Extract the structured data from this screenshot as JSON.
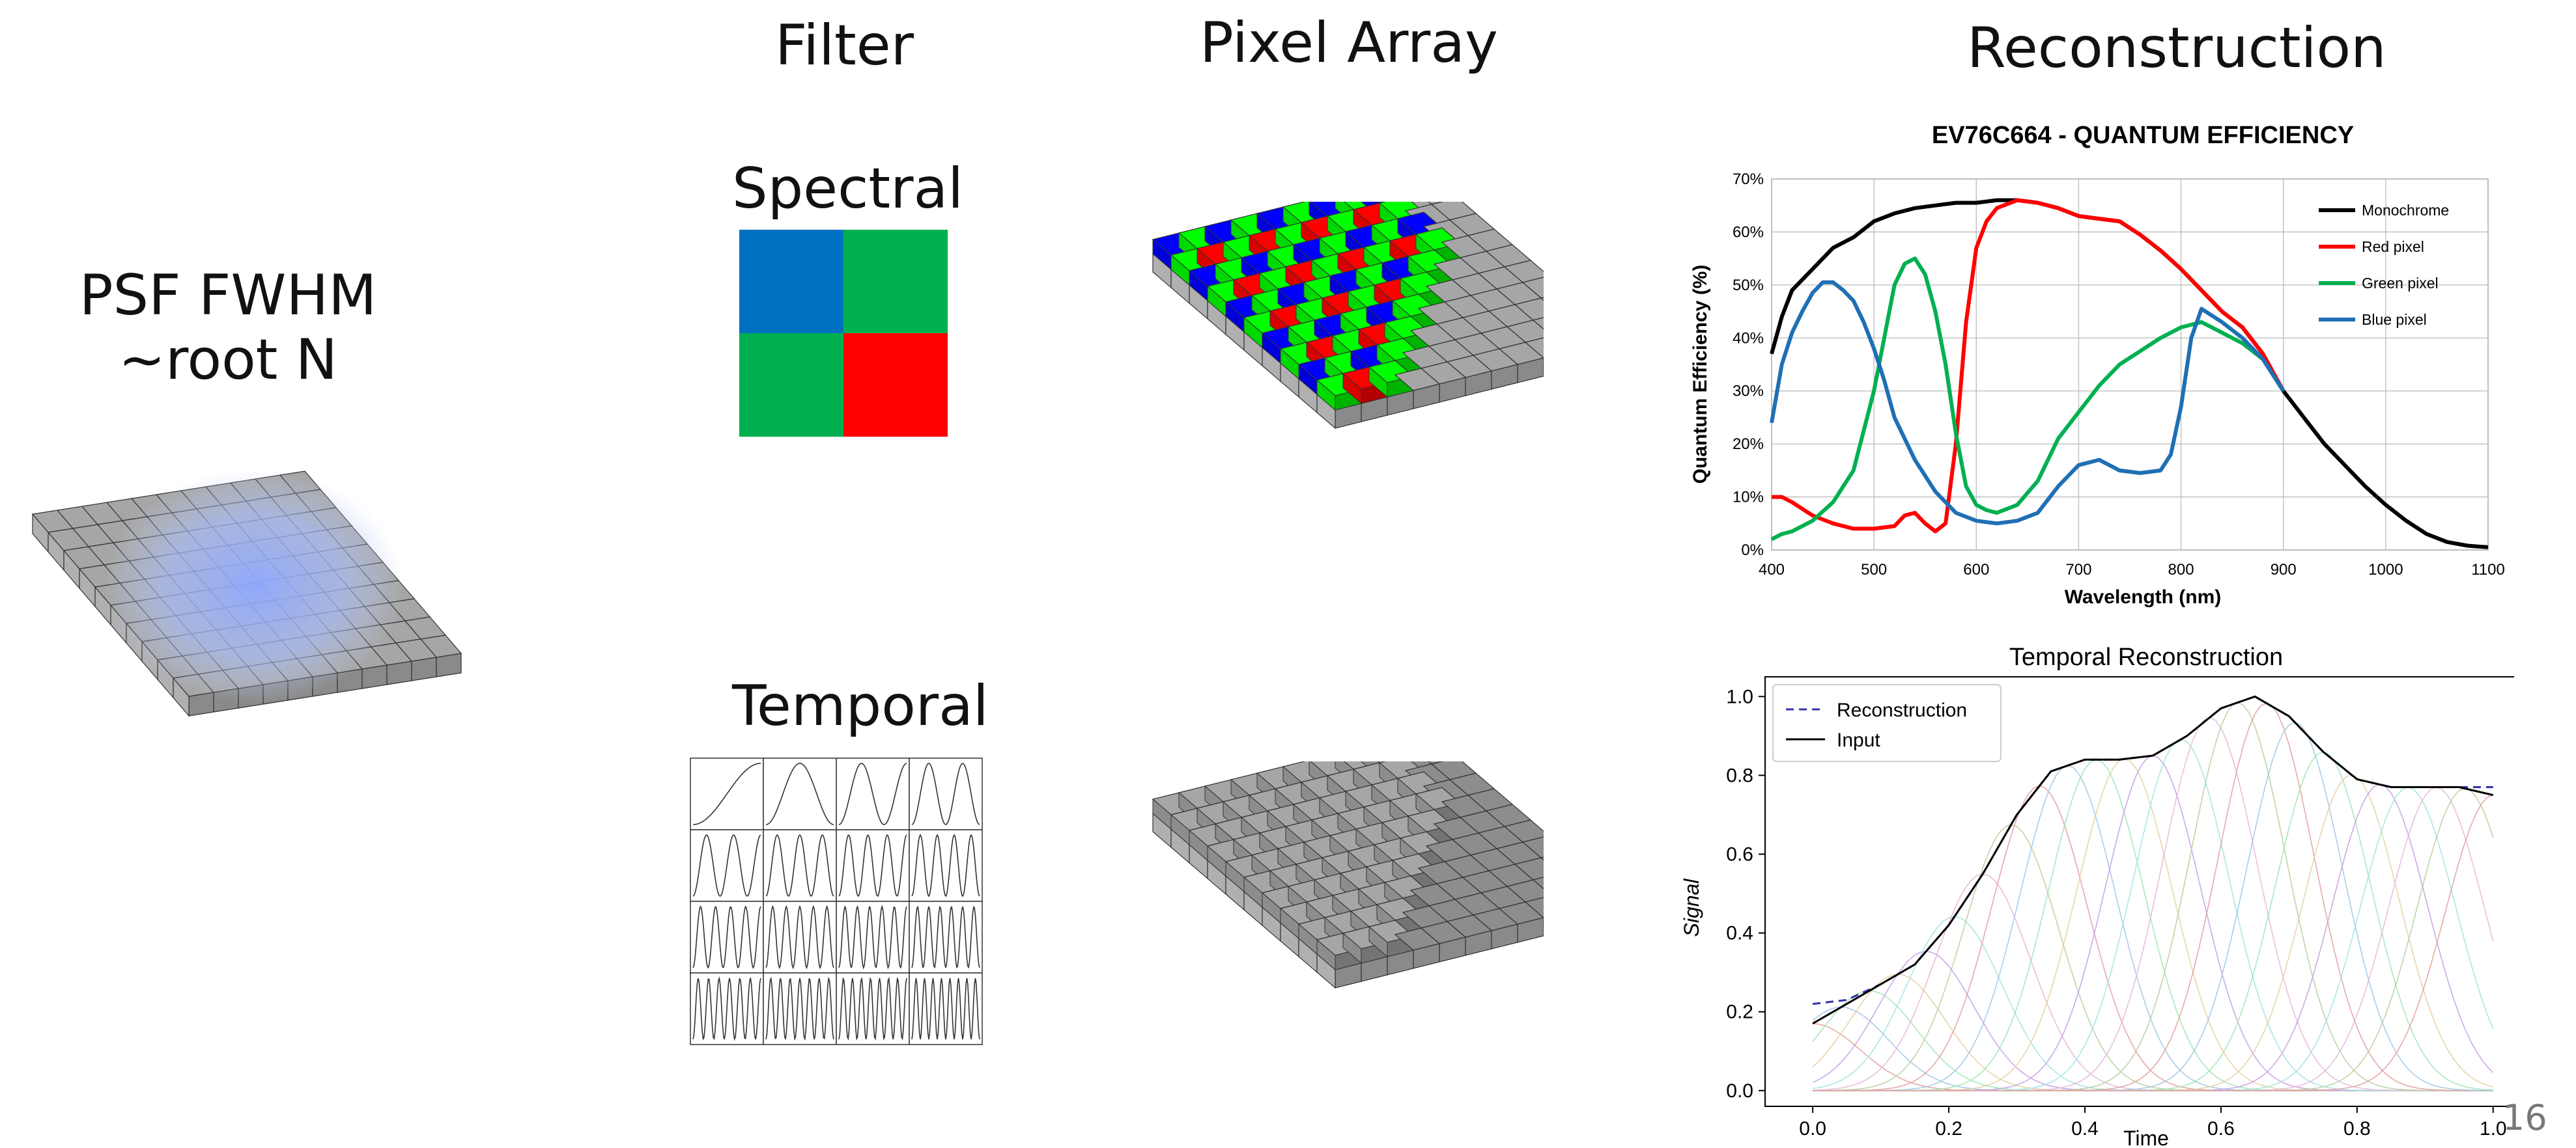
{
  "headings": {
    "filter": "Filter",
    "pixel_array": "Pixel Array",
    "reconstruction": "Reconstruction"
  },
  "psf": {
    "line1": "PSF FWHM",
    "line2": "~root N"
  },
  "spectral_label": "Spectral",
  "temporal_label": "Temporal",
  "page_number": "16",
  "colors": {
    "blue_filter": "#0070C0",
    "green_filter": "#00B050",
    "red_filter": "#FF0000",
    "bayer_blue": "#0000FF",
    "bayer_green": "#00FF00",
    "bayer_red": "#FF0000",
    "pixel_grey": "#9e9e9e",
    "psf_glow": "#8fa8ff"
  },
  "chart_data": [
    {
      "type": "line",
      "title": "EV76C664 - QUANTUM EFFICIENCY",
      "xlabel": "Wavelength (nm)",
      "ylabel": "Quantum Efficiency (%)",
      "xlim": [
        400,
        1100
      ],
      "ylim": [
        0,
        70
      ],
      "xticks": [
        "400",
        "500",
        "600",
        "700",
        "800",
        "900",
        "1000",
        "1100"
      ],
      "yticks": [
        "0%",
        "10%",
        "20%",
        "30%",
        "40%",
        "50%",
        "60%",
        "70%"
      ],
      "grid": true,
      "legend": "top-right",
      "series": [
        {
          "name": "Monochrome",
          "color": "#000000",
          "x": [
            400,
            410,
            420,
            440,
            460,
            480,
            500,
            520,
            540,
            560,
            580,
            600,
            620,
            640,
            660,
            680,
            700,
            720,
            740,
            760,
            780,
            800,
            820,
            840,
            860,
            880,
            900,
            920,
            940,
            960,
            980,
            1000,
            1020,
            1040,
            1060,
            1080,
            1100
          ],
          "y": [
            37,
            44,
            49,
            53,
            57,
            59,
            62,
            63.5,
            64.5,
            65,
            65.5,
            65.5,
            66,
            66,
            65.5,
            64.5,
            63,
            62.5,
            62,
            59.5,
            56.5,
            53,
            49,
            45,
            42,
            37,
            30,
            25,
            20,
            16,
            12,
            8.5,
            5.5,
            3,
            1.5,
            0.8,
            0.5
          ]
        },
        {
          "name": "Red pixel",
          "color": "#ff0000",
          "x": [
            400,
            410,
            420,
            440,
            460,
            480,
            500,
            520,
            530,
            540,
            550,
            560,
            570,
            580,
            590,
            600,
            610,
            620,
            640,
            660,
            680,
            700,
            720,
            740,
            760,
            780,
            800,
            820,
            840,
            860,
            880,
            900
          ],
          "y": [
            10,
            10,
            9,
            6.5,
            5,
            4,
            4,
            4.5,
            6.5,
            7,
            5,
            3.5,
            5,
            20,
            43,
            57,
            62,
            64.5,
            66,
            65.5,
            64.5,
            63,
            62.5,
            62,
            59.5,
            56.5,
            53,
            49,
            45,
            42,
            37,
            30
          ]
        },
        {
          "name": "Green pixel",
          "color": "#00b050",
          "x": [
            400,
            410,
            420,
            440,
            460,
            480,
            500,
            510,
            520,
            530,
            540,
            550,
            560,
            570,
            580,
            590,
            600,
            610,
            620,
            640,
            660,
            680,
            700,
            720,
            740,
            760,
            780,
            800,
            820,
            840,
            860,
            880,
            900
          ],
          "y": [
            2,
            3,
            3.5,
            5.5,
            9,
            15,
            30,
            40,
            50,
            54,
            55,
            52,
            45,
            35,
            22,
            12,
            8.5,
            7.5,
            7,
            8.5,
            13,
            21,
            26,
            31,
            35,
            37.5,
            40,
            42,
            43,
            41,
            39,
            36,
            30
          ]
        },
        {
          "name": "Blue pixel",
          "color": "#1f6fb5",
          "x": [
            400,
            410,
            420,
            430,
            440,
            450,
            460,
            470,
            480,
            490,
            500,
            510,
            520,
            540,
            560,
            580,
            600,
            620,
            640,
            660,
            680,
            700,
            720,
            740,
            760,
            780,
            790,
            800,
            810,
            820,
            840,
            860,
            880,
            900
          ],
          "y": [
            24,
            35,
            41,
            45,
            48.5,
            50.5,
            50.5,
            49,
            47,
            43,
            38,
            32,
            25,
            17,
            11,
            7,
            5.5,
            5,
            5.5,
            7,
            12,
            16,
            17,
            15,
            14.5,
            15,
            18,
            27,
            40,
            45.5,
            43,
            40,
            36,
            30
          ]
        }
      ]
    },
    {
      "type": "line",
      "title": "Temporal Reconstruction",
      "xlabel": "Time",
      "ylabel": "Signal",
      "xlim": [
        0,
        1
      ],
      "ylim": [
        0,
        1
      ],
      "xticks": [
        "0.0",
        "0.2",
        "0.4",
        "0.6",
        "0.8",
        "1.0"
      ],
      "yticks": [
        "0.0",
        "0.2",
        "0.4",
        "0.6",
        "0.8",
        "1.0"
      ],
      "legend": "top-left",
      "series": [
        {
          "name": "Reconstruction",
          "style": "dashed",
          "color": "#3333aa",
          "x": [
            0,
            0.05,
            0.1,
            0.15,
            0.2,
            0.25,
            0.3,
            0.35,
            0.4,
            0.45,
            0.5,
            0.55,
            0.6,
            0.65,
            0.7,
            0.75,
            0.8,
            0.85,
            0.9,
            0.95,
            1.0
          ],
          "y": [
            0.22,
            0.23,
            0.27,
            0.32,
            0.42,
            0.55,
            0.7,
            0.81,
            0.84,
            0.84,
            0.85,
            0.9,
            0.97,
            1.0,
            0.95,
            0.86,
            0.79,
            0.77,
            0.77,
            0.77,
            0.77
          ]
        },
        {
          "name": "Input",
          "style": "solid",
          "color": "#000000",
          "x": [
            0,
            0.05,
            0.1,
            0.15,
            0.2,
            0.25,
            0.3,
            0.35,
            0.4,
            0.45,
            0.5,
            0.55,
            0.6,
            0.65,
            0.7,
            0.75,
            0.8,
            0.85,
            0.9,
            0.95,
            1.0
          ],
          "y": [
            0.17,
            0.22,
            0.27,
            0.32,
            0.42,
            0.55,
            0.7,
            0.81,
            0.84,
            0.84,
            0.85,
            0.9,
            0.97,
            1.0,
            0.95,
            0.86,
            0.79,
            0.77,
            0.77,
            0.77,
            0.75
          ]
        }
      ],
      "basis_count": 25
    }
  ]
}
